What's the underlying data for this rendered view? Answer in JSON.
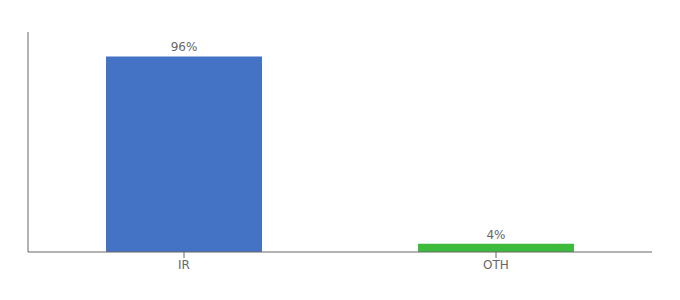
{
  "chart_data": {
    "type": "bar",
    "categories": [
      "IR",
      "OTH"
    ],
    "values": [
      96,
      4
    ],
    "value_labels": [
      "96%",
      "4%"
    ],
    "colors": [
      "#4472c4",
      "#3dbb3d"
    ],
    "ylim": [
      0,
      108
    ],
    "data_labels": true,
    "tick_labels": "x",
    "grid": false
  }
}
